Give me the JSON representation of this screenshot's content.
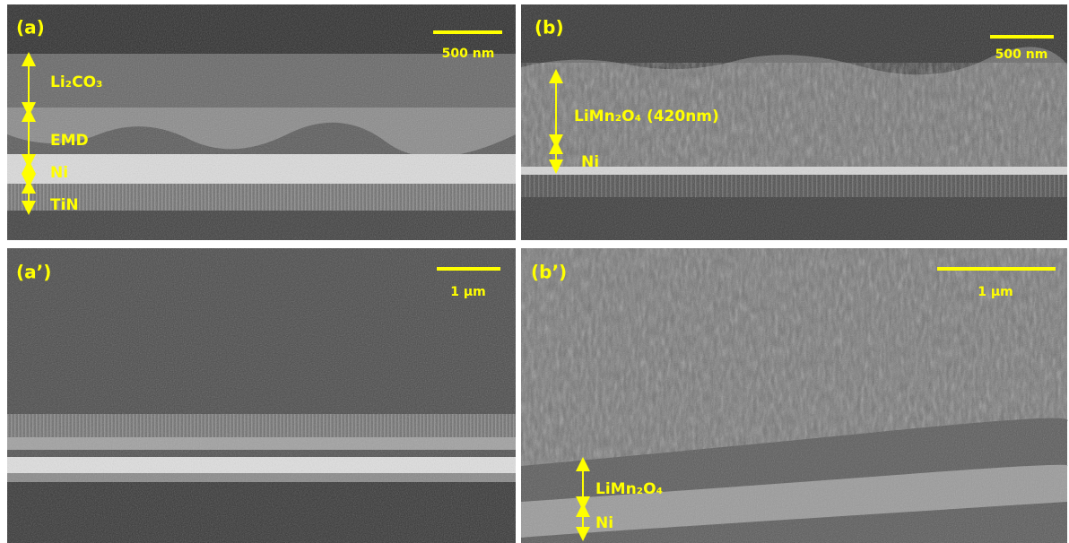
{
  "panels": [
    {
      "label": "(a)",
      "scale_bar": "500 nm",
      "annotations": [
        "Li₂CO₃",
        "EMD",
        "Ni",
        "TiN"
      ]
    },
    {
      "label": "(b)",
      "scale_bar": "500 nm",
      "annotations": [
        "LiMn₂O₄ (420nm)",
        "Ni"
      ]
    },
    {
      "label": "(a’)",
      "scale_bar": "1 µm",
      "annotations": []
    },
    {
      "label": "(b’)",
      "scale_bar": "1 µm",
      "annotations": [
        "LiMn₂O₄",
        "Ni"
      ]
    }
  ]
}
